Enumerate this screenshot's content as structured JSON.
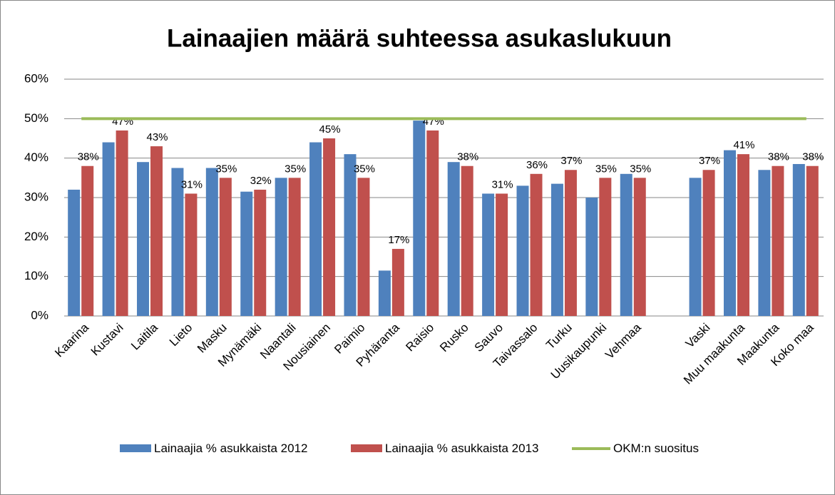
{
  "chart_data": {
    "type": "bar",
    "title": "Lainaajien määrä suhteessa asukaslukuun",
    "categories": [
      "Kaarina",
      "Kustavi",
      "Laitila",
      "Lieto",
      "Masku",
      "Mynämäki",
      "Naantali",
      "Nousiainen",
      "Paimio",
      "Pyhäranta",
      "Raisio",
      "Rusko",
      "Sauvo",
      "Taivassalo",
      "Turku",
      "Uusikaupunki",
      "Vehmaa",
      null,
      "Vaski",
      "Muu maakunta",
      "Maakunta",
      "Koko maa"
    ],
    "series": [
      {
        "name": "Lainaajia % asukkaista 2012",
        "color": "#4f81bd",
        "type": "bar",
        "values": [
          32,
          44,
          39,
          37.5,
          37.5,
          31.5,
          35,
          44,
          41,
          11.5,
          49.5,
          39,
          31,
          33,
          33.5,
          30,
          36,
          null,
          35,
          42,
          37,
          38.5
        ]
      },
      {
        "name": "Lainaajia % asukkaista 2013",
        "color": "#c0504d",
        "type": "bar",
        "values": [
          38,
          47,
          43,
          31,
          35,
          32,
          35,
          45,
          35,
          17,
          47,
          38,
          31,
          36,
          37,
          35,
          35,
          null,
          37,
          41,
          38,
          38
        ],
        "value_labels": [
          "38%",
          "47%",
          "43%",
          "31%",
          "35%",
          "32%",
          "35%",
          "45%",
          "35%",
          "17%",
          "47%",
          "38%",
          "31%",
          "36%",
          "37%",
          "35%",
          "35%",
          null,
          "37%",
          "41%",
          "38%",
          "38%"
        ]
      },
      {
        "name": "OKM:n suositus",
        "color": "#9bbb59",
        "type": "line",
        "values": [
          50,
          50,
          50,
          50,
          50,
          50,
          50,
          50,
          50,
          50,
          50,
          50,
          50,
          50,
          50,
          50,
          50,
          50,
          50,
          50,
          50,
          50
        ]
      }
    ],
    "ylim": [
      0,
      60
    ],
    "yticks": [
      {
        "value": 0,
        "label": "0%"
      },
      {
        "value": 10,
        "label": "10%"
      },
      {
        "value": 20,
        "label": "20%"
      },
      {
        "value": 30,
        "label": "30%"
      },
      {
        "value": 40,
        "label": "40%"
      },
      {
        "value": 50,
        "label": "50%"
      },
      {
        "value": 60,
        "label": "60%"
      }
    ],
    "grid": true,
    "legend": "bottom"
  }
}
